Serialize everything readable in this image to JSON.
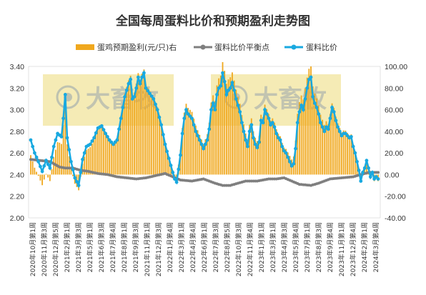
{
  "chart_data": {
    "type": "bar+line",
    "title": "全国每周蛋料比价和预期盈利走势图",
    "legend": [
      "蛋鸡预期盈利(元/只)右",
      "蛋料比价平衡点",
      "蛋料比价"
    ],
    "watermark_text": "大畜牧",
    "colors": {
      "bars": "#F0A81E",
      "balance": "#7F7F7F",
      "ratio": "#19A9E0",
      "watermark_band": "#F3E6A3"
    },
    "y_left": {
      "min": 2.0,
      "max": 3.4,
      "step": 0.2
    },
    "y_left_ticks": [
      "2.00",
      "2.20",
      "2.40",
      "2.60",
      "2.80",
      "3.00",
      "3.20",
      "3.40"
    ],
    "y_right": {
      "min": -40,
      "max": 100,
      "step": 20
    },
    "y_right_ticks": [
      "-40.00",
      "-20.00",
      "0.00",
      "20.00",
      "40.00",
      "60.00",
      "80.00",
      "100.00"
    ],
    "x_tick_labels": [
      "2020年10月第1周",
      "2020年11月第3周",
      "2020年12月第5周",
      "2021年2月第1周",
      "2021年3月第3周",
      "2021年5月第1周",
      "2021年6月第3周",
      "2021年7月第4周",
      "2021年8月第1周",
      "2021年9月第3周",
      "2021年11月第1周",
      "2021年12月第3周",
      "2022年1月第4周",
      "2022年3月第1周",
      "2022年4月第4周",
      "2022年6月第1周",
      "2022年7月第3周",
      "2022年8月第5周",
      "2022年10月第3周",
      "2022年11月第4周",
      "2023年1月第1周",
      "2023年3月第1周",
      "2023年4月第3周",
      "2023年5月第4周",
      "2023年7月第1周",
      "2023年8月第3周",
      "2023年9月第4周",
      "2023年11月第1周",
      "2023年12月第4周",
      "2024年2月第1周",
      "2024年3月第4周"
    ],
    "x_weeks": 182,
    "ratio_keypoints": [
      [
        0,
        2.72
      ],
      [
        2,
        2.6
      ],
      [
        4,
        2.52
      ],
      [
        6,
        2.43
      ],
      [
        8,
        2.53
      ],
      [
        10,
        2.46
      ],
      [
        12,
        2.66
      ],
      [
        14,
        2.78
      ],
      [
        16,
        2.75
      ],
      [
        17,
        2.92
      ],
      [
        18,
        3.14
      ],
      [
        19,
        2.74
      ],
      [
        21,
        2.52
      ],
      [
        23,
        2.37
      ],
      [
        25,
        2.3
      ],
      [
        27,
        2.54
      ],
      [
        29,
        2.66
      ],
      [
        31,
        2.68
      ],
      [
        33,
        2.74
      ],
      [
        35,
        2.83
      ],
      [
        37,
        2.85
      ],
      [
        39,
        2.78
      ],
      [
        41,
        2.72
      ],
      [
        43,
        2.68
      ],
      [
        45,
        2.72
      ],
      [
        47,
        2.92
      ],
      [
        49,
        3.12
      ],
      [
        51,
        3.24
      ],
      [
        52,
        3.28
      ],
      [
        53,
        3.1
      ],
      [
        54,
        3.12
      ],
      [
        55,
        3.2
      ],
      [
        56,
        3.3
      ],
      [
        57,
        3.24
      ],
      [
        58,
        3.3
      ],
      [
        59,
        3.34
      ],
      [
        60,
        3.2
      ],
      [
        62,
        3.15
      ],
      [
        64,
        3.1
      ],
      [
        66,
        3.0
      ],
      [
        68,
        2.86
      ],
      [
        70,
        2.68
      ],
      [
        72,
        2.55
      ],
      [
        74,
        2.42
      ],
      [
        75,
        2.36
      ],
      [
        76,
        2.33
      ],
      [
        77,
        2.45
      ],
      [
        78,
        2.58
      ],
      [
        79,
        2.78
      ],
      [
        80,
        2.92
      ],
      [
        81,
        3.0
      ],
      [
        82,
        2.96
      ],
      [
        83,
        2.94
      ],
      [
        84,
        2.92
      ],
      [
        86,
        2.8
      ],
      [
        88,
        2.72
      ],
      [
        90,
        2.64
      ],
      [
        92,
        2.72
      ],
      [
        93,
        2.82
      ],
      [
        94,
        3.0
      ],
      [
        95,
        3.06
      ],
      [
        96,
        3.0
      ],
      [
        97,
        3.14
      ],
      [
        98,
        3.2
      ],
      [
        99,
        3.22
      ],
      [
        100,
        3.34
      ],
      [
        101,
        3.26
      ],
      [
        102,
        3.14
      ],
      [
        103,
        3.18
      ],
      [
        104,
        3.2
      ],
      [
        105,
        3.25
      ],
      [
        106,
        3.18
      ],
      [
        107,
        3.1
      ],
      [
        108,
        3.04
      ],
      [
        109,
        2.98
      ],
      [
        110,
        2.88
      ],
      [
        111,
        2.8
      ],
      [
        112,
        2.72
      ],
      [
        113,
        2.66
      ],
      [
        114,
        2.8
      ],
      [
        115,
        2.86
      ],
      [
        116,
        2.74
      ],
      [
        117,
        2.68
      ],
      [
        118,
        2.65
      ],
      [
        119,
        2.7
      ],
      [
        120,
        2.9
      ],
      [
        121,
        2.88
      ],
      [
        122,
        3.0
      ],
      [
        123,
        2.96
      ],
      [
        124,
        2.92
      ],
      [
        125,
        2.86
      ],
      [
        126,
        2.88
      ],
      [
        127,
        2.84
      ],
      [
        128,
        2.78
      ],
      [
        129,
        2.74
      ],
      [
        130,
        2.72
      ],
      [
        131,
        2.66
      ],
      [
        132,
        2.62
      ],
      [
        133,
        2.6
      ],
      [
        134,
        2.56
      ],
      [
        135,
        2.52
      ],
      [
        136,
        2.48
      ],
      [
        137,
        2.5
      ],
      [
        138,
        2.64
      ],
      [
        139,
        2.88
      ],
      [
        140,
        2.98
      ],
      [
        141,
        3.04
      ],
      [
        142,
        3.0
      ],
      [
        143,
        3.1
      ],
      [
        144,
        3.2
      ],
      [
        145,
        3.28
      ],
      [
        146,
        3.3
      ],
      [
        147,
        3.12
      ],
      [
        148,
        3.06
      ],
      [
        149,
        3.02
      ],
      [
        150,
        2.96
      ],
      [
        151,
        2.88
      ],
      [
        152,
        2.84
      ],
      [
        153,
        2.8
      ],
      [
        154,
        2.84
      ],
      [
        155,
        2.82
      ],
      [
        156,
        2.92
      ],
      [
        157,
        3.02
      ],
      [
        158,
        2.98
      ],
      [
        159,
        2.9
      ],
      [
        160,
        2.84
      ],
      [
        161,
        2.8
      ],
      [
        162,
        2.76
      ],
      [
        163,
        2.78
      ],
      [
        164,
        2.78
      ],
      [
        165,
        2.76
      ],
      [
        166,
        2.74
      ],
      [
        167,
        2.75
      ],
      [
        168,
        2.66
      ],
      [
        169,
        2.6
      ],
      [
        170,
        2.52
      ],
      [
        171,
        2.44
      ],
      [
        172,
        2.34
      ],
      [
        173,
        2.42
      ],
      [
        174,
        2.46
      ],
      [
        175,
        2.53
      ],
      [
        176,
        2.46
      ],
      [
        177,
        2.38
      ],
      [
        178,
        2.42
      ],
      [
        179,
        2.36
      ],
      [
        180,
        2.38
      ],
      [
        181,
        2.36
      ]
    ],
    "balance_keypoints": [
      [
        0,
        2.54
      ],
      [
        5,
        2.53
      ],
      [
        10,
        2.52
      ],
      [
        15,
        2.47
      ],
      [
        18,
        2.46
      ],
      [
        22,
        2.46
      ],
      [
        26,
        2.44
      ],
      [
        30,
        2.43
      ],
      [
        35,
        2.41
      ],
      [
        40,
        2.4
      ],
      [
        45,
        2.38
      ],
      [
        50,
        2.37
      ],
      [
        55,
        2.36
      ],
      [
        60,
        2.37
      ],
      [
        65,
        2.39
      ],
      [
        70,
        2.41
      ],
      [
        74,
        2.38
      ],
      [
        78,
        2.35
      ],
      [
        84,
        2.34
      ],
      [
        90,
        2.36
      ],
      [
        96,
        2.32
      ],
      [
        100,
        2.3
      ],
      [
        104,
        2.3
      ],
      [
        108,
        2.32
      ],
      [
        112,
        2.34
      ],
      [
        118,
        2.34
      ],
      [
        124,
        2.36
      ],
      [
        128,
        2.36
      ],
      [
        132,
        2.37
      ],
      [
        136,
        2.34
      ],
      [
        140,
        2.31
      ],
      [
        146,
        2.3
      ],
      [
        150,
        2.32
      ],
      [
        156,
        2.36
      ],
      [
        162,
        2.37
      ],
      [
        168,
        2.38
      ],
      [
        172,
        2.4
      ],
      [
        176,
        2.42
      ],
      [
        181,
        2.42
      ]
    ]
  }
}
